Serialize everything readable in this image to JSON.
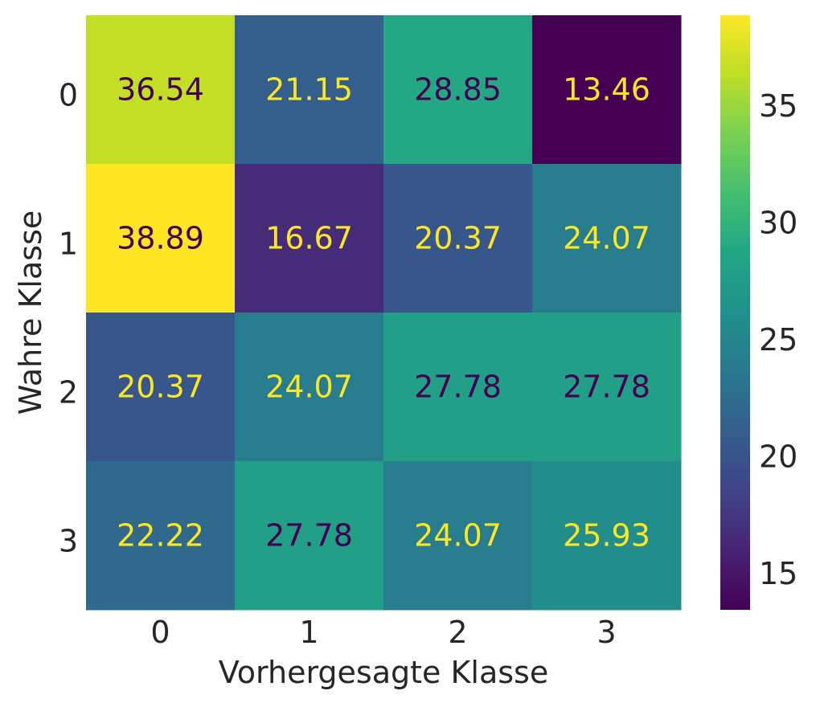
{
  "chart_data": {
    "type": "heatmap",
    "title": "",
    "xlabel": "Vorhergesagte Klasse",
    "ylabel": "Wahre Klasse",
    "x_categories": [
      "0",
      "1",
      "2",
      "3"
    ],
    "y_categories": [
      "0",
      "1",
      "2",
      "3"
    ],
    "values": [
      [
        36.54,
        21.15,
        28.85,
        13.46
      ],
      [
        38.89,
        16.67,
        20.37,
        24.07
      ],
      [
        20.37,
        24.07,
        27.78,
        27.78
      ],
      [
        22.22,
        27.78,
        24.07,
        25.93
      ]
    ],
    "value_labels": [
      [
        "36.54",
        "21.15",
        "28.85",
        "13.46"
      ],
      [
        "38.89",
        "16.67",
        "20.37",
        "24.07"
      ],
      [
        "20.37",
        "24.07",
        "27.78",
        "27.78"
      ],
      [
        "22.22",
        "27.78",
        "24.07",
        "25.93"
      ]
    ],
    "colormap": "viridis",
    "vmin": 13.46,
    "vmax": 38.89,
    "colorbar_ticks": [
      15,
      20,
      25,
      30,
      35
    ],
    "colorbar_tick_labels": [
      "15",
      "20",
      "25",
      "30",
      "35"
    ],
    "annotation_colors": {
      "dark": "#440154",
      "light": "#fde725"
    },
    "text_color": "#262626",
    "grid": false
  }
}
